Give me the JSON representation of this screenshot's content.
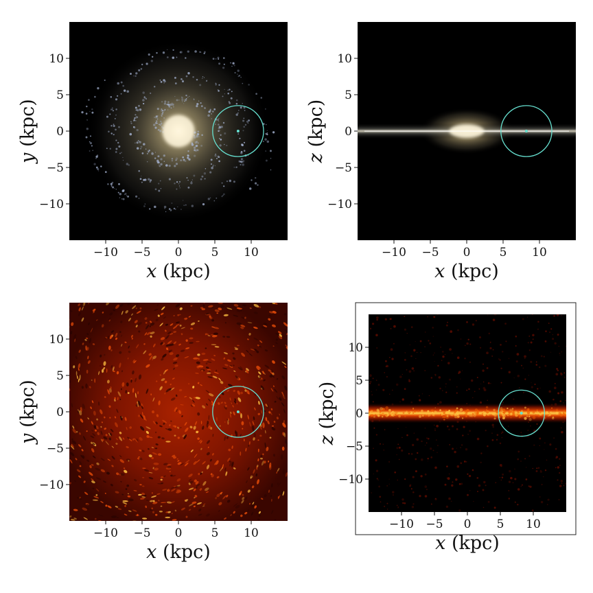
{
  "figure": {
    "panels": [
      {
        "id": "stars-face-on",
        "kind": "stellar-face-on",
        "xlabel_var": "x",
        "xlabel_unit": " (kpc)",
        "ylabel_var": "y",
        "ylabel_unit": " (kpc)",
        "x_ticks": [
          "−10",
          "−5",
          "0",
          "5",
          "10"
        ],
        "y_ticks": [
          "10",
          "5",
          "0",
          "−5",
          "−10"
        ],
        "tick_values": [
          -10,
          -5,
          0,
          5,
          10
        ],
        "range_kpc": [
          -15,
          15
        ],
        "marker_kpc": {
          "x": 8.2,
          "y": 0.0,
          "radius": 3.5
        },
        "framed": false
      },
      {
        "id": "stars-edge-on",
        "kind": "stellar-edge-on",
        "xlabel_var": "x",
        "xlabel_unit": " (kpc)",
        "ylabel_var": "z",
        "ylabel_unit": " (kpc)",
        "x_ticks": [
          "−10",
          "−5",
          "0",
          "5",
          "10"
        ],
        "y_ticks": [
          "10",
          "5",
          "0",
          "−5",
          "−10"
        ],
        "tick_values": [
          -10,
          -5,
          0,
          5,
          10
        ],
        "range_kpc": [
          -15,
          15
        ],
        "marker_kpc": {
          "x": 8.2,
          "y": 0.0,
          "radius": 3.5
        },
        "framed": false
      },
      {
        "id": "gas-face-on",
        "kind": "gas-face-on",
        "xlabel_var": "x",
        "xlabel_unit": " (kpc)",
        "ylabel_var": "y",
        "ylabel_unit": " (kpc)",
        "x_ticks": [
          "−10",
          "−5",
          "0",
          "5",
          "10"
        ],
        "y_ticks": [
          "10",
          "5",
          "0",
          "−5",
          "−10"
        ],
        "tick_values": [
          -10,
          -5,
          0,
          5,
          10
        ],
        "range_kpc": [
          -15,
          15
        ],
        "marker_kpc": {
          "x": 8.2,
          "y": 0.0,
          "radius": 3.5
        },
        "framed": false
      },
      {
        "id": "gas-edge-on",
        "kind": "gas-edge-on",
        "xlabel_var": "x",
        "xlabel_unit": " (kpc)",
        "ylabel_var": "z",
        "ylabel_unit": " (kpc)",
        "x_ticks": [
          "−10",
          "−5",
          "0",
          "5",
          "10"
        ],
        "y_ticks": [
          "10",
          "5",
          "0",
          "−5",
          "−10"
        ],
        "tick_values": [
          -10,
          -5,
          0,
          5,
          10
        ],
        "range_kpc": [
          -15,
          15
        ],
        "marker_kpc": {
          "x": 8.2,
          "y": 0.0,
          "radius": 3.5
        },
        "framed": true
      }
    ],
    "colors": {
      "background": "#000000",
      "gas_dark": "#2a0400",
      "gas_mid": "#c42a00",
      "gas_bright": "#ffc040",
      "star_core": "#fff6dc",
      "star_glow": "#d8c9a0",
      "star_young": "#aab8d8",
      "marker": "#66e0d0"
    }
  }
}
